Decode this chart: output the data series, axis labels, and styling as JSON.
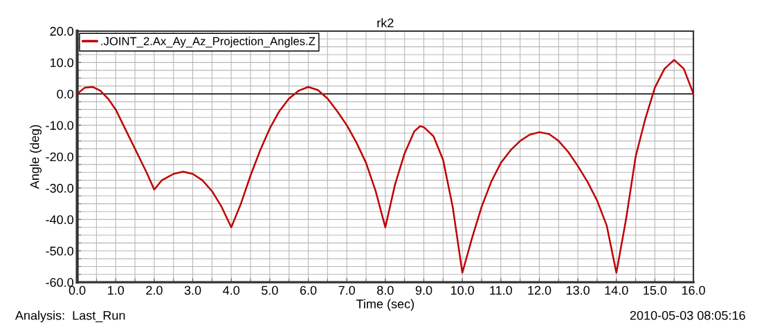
{
  "chart_data": {
    "type": "line",
    "title": "rk2",
    "xlabel": "Time (sec)",
    "ylabel": "Angle (deg)",
    "annotations": [
      "Analysis:  Last_Run",
      "2010-05-03 08:05:16"
    ],
    "x": [
      0,
      0.2,
      0.4,
      0.6,
      0.8,
      1.0,
      1.2,
      1.4,
      1.6,
      1.8,
      2.0,
      2.2,
      2.5,
      2.75,
      3.0,
      3.25,
      3.5,
      3.75,
      4.0,
      4.25,
      4.5,
      4.75,
      5.0,
      5.25,
      5.5,
      5.75,
      6.0,
      6.25,
      6.5,
      6.75,
      7.0,
      7.25,
      7.5,
      7.75,
      8.0,
      8.25,
      8.5,
      8.75,
      8.9,
      9.0,
      9.25,
      9.5,
      9.75,
      10.0,
      10.25,
      10.5,
      10.75,
      11.0,
      11.25,
      11.5,
      11.75,
      12.0,
      12.25,
      12.5,
      12.75,
      13.0,
      13.25,
      13.5,
      13.75,
      14.0,
      14.25,
      14.5,
      14.75,
      15.0,
      15.25,
      15.5,
      15.75,
      16.0
    ],
    "series": [
      {
        "name": ".JOINT_2.Ax_Ay_Az_Projection_Angles.Z",
        "color": "#c00000",
        "values": [
          0,
          2,
          2.2,
          1,
          -1.5,
          -5,
          -10,
          -15,
          -20,
          -25,
          -30.5,
          -27.5,
          -25.5,
          -24.8,
          -25.5,
          -27.5,
          -31,
          -36,
          -42.5,
          -35,
          -26,
          -18,
          -11,
          -5.5,
          -1.5,
          1,
          2.2,
          1.2,
          -1.5,
          -5.5,
          -10,
          -15.5,
          -22,
          -31,
          -42.5,
          -29,
          -19,
          -12,
          -10.3,
          -10.6,
          -13.5,
          -21,
          -36,
          -57,
          -46,
          -36,
          -28,
          -22,
          -18,
          -15,
          -13,
          -12.2,
          -12.8,
          -15,
          -18.5,
          -23,
          -28,
          -34,
          -42,
          -57,
          -40,
          -20,
          -8,
          2,
          8,
          10.8,
          8,
          0
        ]
      }
    ],
    "xlim": [
      0,
      16
    ],
    "xticks": [
      {
        "value": 0,
        "label": "0.0"
      },
      {
        "value": 1,
        "label": "1.0"
      },
      {
        "value": 2,
        "label": "2.0"
      },
      {
        "value": 3,
        "label": "3.0"
      },
      {
        "value": 4,
        "label": "4.0"
      },
      {
        "value": 5,
        "label": "5.0"
      },
      {
        "value": 6,
        "label": "6.0"
      },
      {
        "value": 7,
        "label": "7.0"
      },
      {
        "value": 8,
        "label": "8.0"
      },
      {
        "value": 9,
        "label": "9.0"
      },
      {
        "value": 10,
        "label": "10.0"
      },
      {
        "value": 11,
        "label": "11.0"
      },
      {
        "value": 12,
        "label": "12.0"
      },
      {
        "value": 13,
        "label": "13.0"
      },
      {
        "value": 14,
        "label": "14.0"
      },
      {
        "value": 15,
        "label": "15.0"
      },
      {
        "value": 16,
        "label": "16.0"
      }
    ],
    "ylim": [
      -60,
      20
    ],
    "yticks": [
      {
        "value": -60,
        "label": "-60.0"
      },
      {
        "value": -50,
        "label": "-50.0"
      },
      {
        "value": -40,
        "label": "-40.0"
      },
      {
        "value": -30,
        "label": "-30.0"
      },
      {
        "value": -20,
        "label": "-20.0"
      },
      {
        "value": -10,
        "label": "-10.0"
      },
      {
        "value": 0,
        "label": "0.0"
      },
      {
        "value": 10,
        "label": "10.0"
      },
      {
        "value": 20,
        "label": "20.0"
      }
    ],
    "ref_lines": [
      {
        "axis": "y",
        "value": 0,
        "color": "#000000"
      }
    ],
    "grid": true,
    "legend": "top left",
    "line_style": "solid",
    "marker": "none"
  }
}
